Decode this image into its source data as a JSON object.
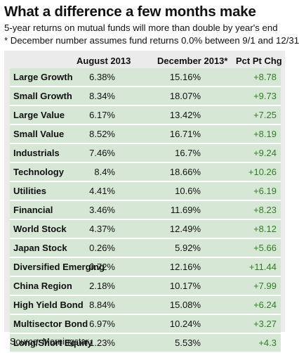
{
  "title": "What a difference a few months make",
  "subtitle_1": "5-year returns on mutual funds will more than double by year's end",
  "subtitle_2": "* December number assumes fund returns 0.0% between 9/1 and 12/31",
  "source": "Source: Morningstar",
  "colors": {
    "panel": "#ebebeb",
    "row": "#d7e7d6",
    "positive": "#2e7d22"
  },
  "chart_data": {
    "type": "table",
    "columns": [
      "",
      "August 2013",
      "December 2013*",
      "Pct Pt Chg"
    ],
    "rows": [
      [
        "Large Growth",
        "6.38%",
        "15.16%",
        "+8.78"
      ],
      [
        "Small Growth",
        "8.34%",
        "18.07%",
        "+9.73"
      ],
      [
        "Large Value",
        "6.17%",
        "13.42%",
        "+7.25"
      ],
      [
        "Small Value",
        "8.52%",
        "16.71%",
        "+8.19"
      ],
      [
        "Industrials",
        "7.46%",
        "16.7%",
        "+9.24"
      ],
      [
        "Technology",
        "8.4%",
        "18.66%",
        "+10.26"
      ],
      [
        "Utilities",
        "4.41%",
        "10.6%",
        "+6.19"
      ],
      [
        "Financial",
        "3.46%",
        "11.69%",
        "+8.23"
      ],
      [
        "World Stock",
        "4.37%",
        "12.49%",
        "+8.12"
      ],
      [
        "Japan Stock",
        "0.26%",
        "5.92%",
        "+5.66"
      ],
      [
        "Diversified Emerging",
        "0.72%",
        "12.16%",
        "+11.44"
      ],
      [
        "China Region",
        "2.18%",
        "10.17%",
        "+7.99"
      ],
      [
        "High Yield Bond",
        "8.84%",
        "15.08%",
        "+6.24"
      ],
      [
        "Multisector Bond",
        "6.97%",
        "10.24%",
        "+3.27"
      ],
      [
        "Long/Short Equity",
        "1.23%",
        "5.53%",
        "+4.3"
      ]
    ]
  }
}
